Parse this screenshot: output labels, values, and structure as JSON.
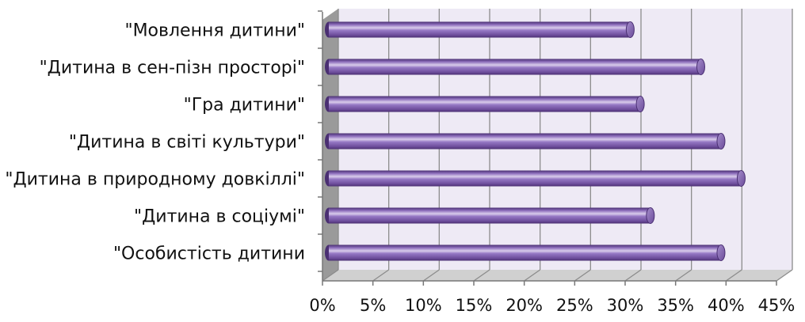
{
  "chart_data": {
    "type": "bar",
    "orientation": "horizontal",
    "style": "3d-cylinder",
    "categories": [
      "\"Мовлення дитини\"",
      "\"Дитина в сен-пізн просторі\"",
      "\"Гра дитини\"",
      "\"Дитина в світі культури\"",
      "\"Дитина в природному довкіллі\"",
      "\"Дитина в соціумі\"",
      "\"Особистість дитини"
    ],
    "values": [
      30.5,
      37.5,
      31.5,
      39.5,
      41.5,
      32.5,
      39.5
    ],
    "xlim": [
      0,
      45
    ],
    "x_ticks": [
      "0%",
      "5%",
      "10%",
      "15%",
      "20%",
      "25%",
      "30%",
      "35%",
      "40%",
      "45%"
    ],
    "grid": true,
    "title": "",
    "xlabel": "",
    "ylabel": "",
    "colors": {
      "bar_main": "#7B5BA8",
      "bar_dark": "#4A2F72",
      "bar_light": "#D9CCEB",
      "plot_back": "#EEEAF5",
      "floor": "#D0D0D0",
      "grid": "#8C8C8C"
    }
  }
}
